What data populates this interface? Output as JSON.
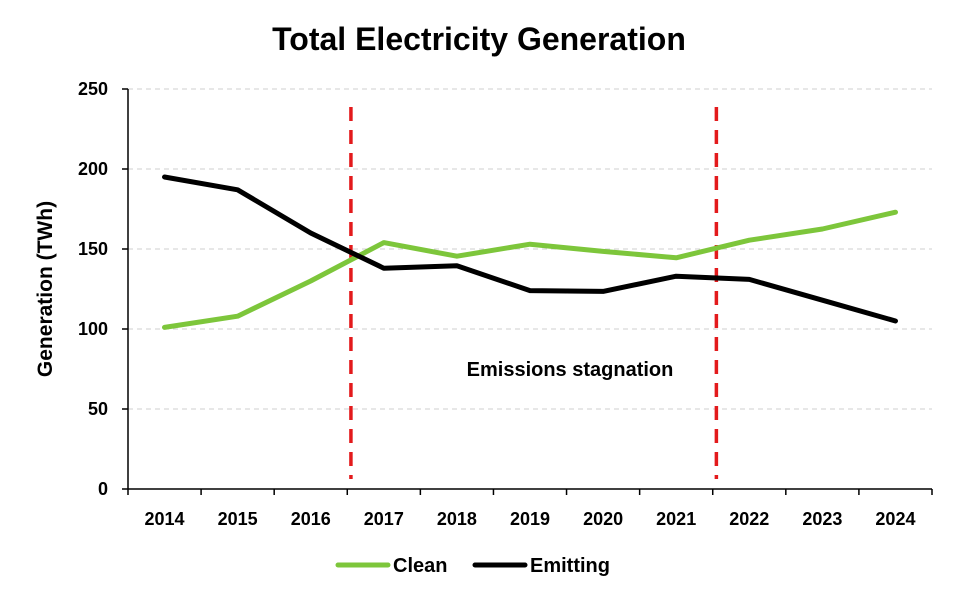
{
  "chart_data": {
    "type": "line",
    "title": "Total Electricity Generation",
    "xlabel": "",
    "ylabel": "Generation (TWh)",
    "categories": [
      "2014",
      "2015",
      "2016",
      "2017",
      "2018",
      "2019",
      "2020",
      "2021",
      "2022",
      "2023",
      "2024"
    ],
    "ylim": [
      0,
      250
    ],
    "yticks": [
      0,
      50,
      100,
      150,
      200,
      250
    ],
    "grid": "horizontal dashed",
    "series": [
      {
        "name": "Clean",
        "color": "#7dc63b",
        "values": [
          101,
          108,
          130,
          154,
          145.5,
          153,
          148.5,
          144.5,
          155.5,
          162.5,
          173
        ]
      },
      {
        "name": "Emitting",
        "color": "#000000",
        "values": [
          195,
          187,
          160,
          138,
          139.5,
          124,
          123.5,
          133,
          131,
          118,
          105
        ]
      }
    ],
    "reference_lines": [
      {
        "x": "2017",
        "offset": "before",
        "color": "#e31a1c",
        "style": "dashed"
      },
      {
        "x": "2022",
        "offset": "before",
        "color": "#e31a1c",
        "style": "dashed"
      }
    ],
    "annotations": [
      {
        "text": "Emissions stagnation"
      }
    ],
    "legend_placement": "bottom"
  }
}
